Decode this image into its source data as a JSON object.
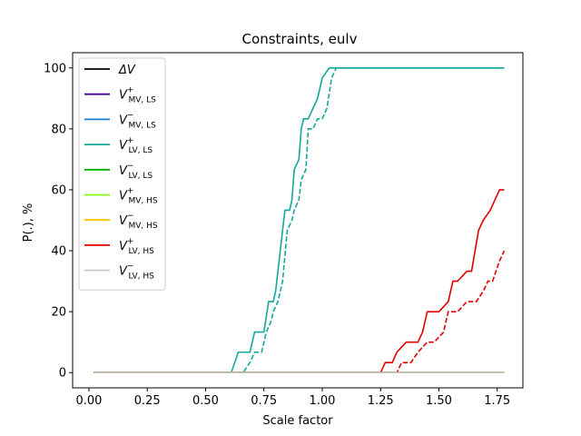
{
  "chart_data": {
    "type": "line",
    "title": "Constraints, eulv",
    "xlabel": "Scale factor",
    "ylabel": "P(.), %",
    "xlim": [
      -0.07,
      1.86
    ],
    "ylim": [
      -5,
      105
    ],
    "xticks": [
      0.0,
      0.25,
      0.5,
      0.75,
      1.0,
      1.25,
      1.5,
      1.75
    ],
    "xtick_labels": [
      "0.00",
      "0.25",
      "0.50",
      "0.75",
      "1.00",
      "1.25",
      "1.50",
      "1.75"
    ],
    "yticks": [
      0,
      20,
      40,
      60,
      80,
      100
    ],
    "ytick_labels": [
      "0",
      "20",
      "40",
      "60",
      "80",
      "100"
    ],
    "grid": false,
    "legend_position": "upper-left",
    "series": [
      {
        "name": "ΔV",
        "main": "ΔV",
        "sup": "",
        "sub": "",
        "color": "#000000",
        "style": "solid",
        "x": [
          0.02,
          1.78
        ],
        "y": [
          0,
          0
        ]
      },
      {
        "name": "V+ MV,LS",
        "main": "V",
        "sup": "+",
        "sub": "MV, LS",
        "color": "#4b0092",
        "style": "solid",
        "x": [
          0.02,
          1.78
        ],
        "y": [
          0,
          0
        ]
      },
      {
        "name": "V− MV,LS",
        "main": "V",
        "sup": "−",
        "sub": "MV, LS",
        "color": "#1a78d6",
        "style": "solid",
        "x": [
          0.02,
          1.78
        ],
        "y": [
          0,
          0
        ]
      },
      {
        "name": "V+ LV,LS",
        "main": "V",
        "sup": "+",
        "sub": "LV, LS",
        "color": "#12a89a",
        "style": "solid",
        "x": [
          0.02,
          0.61,
          0.64,
          0.67,
          0.69,
          0.71,
          0.73,
          0.75,
          0.77,
          0.79,
          0.8,
          0.81,
          0.83,
          0.84,
          0.86,
          0.87,
          0.88,
          0.9,
          0.91,
          0.92,
          0.94,
          0.96,
          0.98,
          1.0,
          1.03,
          1.78
        ],
        "y": [
          0,
          0,
          6.7,
          6.7,
          6.7,
          13.3,
          13.3,
          13.3,
          23.3,
          23.3,
          26.7,
          33.3,
          46.7,
          53.3,
          53.3,
          56.7,
          66.7,
          70,
          80,
          83.3,
          83.3,
          86.7,
          90,
          96.7,
          100,
          100
        ]
      },
      {
        "name": "V+ LV,LS (dashed)",
        "main": "",
        "sup": "",
        "sub": "",
        "color": "#12a89a",
        "style": "dashed",
        "legend": false,
        "x": [
          0.02,
          0.66,
          0.69,
          0.71,
          0.73,
          0.74,
          0.76,
          0.78,
          0.79,
          0.81,
          0.83,
          0.85,
          0.87,
          0.88,
          0.9,
          0.91,
          0.93,
          0.94,
          0.96,
          0.98,
          1.0,
          1.02,
          1.04,
          1.06,
          1.78
        ],
        "y": [
          0,
          0,
          3.3,
          6.7,
          6.7,
          6.7,
          13.3,
          16.7,
          20,
          23.3,
          30,
          46.7,
          50,
          53.3,
          56.7,
          63.3,
          66.7,
          80,
          80,
          83.3,
          83.3,
          86.7,
          96.7,
          100,
          100
        ]
      },
      {
        "name": "V− LV,LS",
        "main": "V",
        "sup": "−",
        "sub": "LV, LS",
        "color": "#00b000",
        "style": "solid",
        "x": [
          0.02,
          1.78
        ],
        "y": [
          0,
          0
        ]
      },
      {
        "name": "V+ MV,HS",
        "main": "V",
        "sup": "+",
        "sub": "MV, HS",
        "color": "#7fff00",
        "style": "solid",
        "x": [
          0.02,
          1.78
        ],
        "y": [
          0,
          0
        ]
      },
      {
        "name": "V− MV,HS",
        "main": "V",
        "sup": "−",
        "sub": "MV, HS",
        "color": "#f5c200",
        "style": "solid",
        "x": [
          0.02,
          1.78
        ],
        "y": [
          0,
          0
        ]
      },
      {
        "name": "V+ LV,HS",
        "main": "V",
        "sup": "+",
        "sub": "LV, HS",
        "color": "#e00000",
        "style": "solid",
        "x": [
          0.02,
          1.25,
          1.27,
          1.3,
          1.32,
          1.36,
          1.41,
          1.43,
          1.45,
          1.5,
          1.54,
          1.56,
          1.58,
          1.62,
          1.64,
          1.67,
          1.69,
          1.72,
          1.74,
          1.76,
          1.78
        ],
        "y": [
          0,
          0,
          3.3,
          3.3,
          6.7,
          10,
          10,
          13.3,
          20,
          20,
          23.3,
          30,
          30,
          33.3,
          33.3,
          46.7,
          50,
          53.3,
          56.7,
          60,
          60
        ]
      },
      {
        "name": "V+ LV,HS (dashed)",
        "main": "",
        "sup": "",
        "sub": "",
        "color": "#e00000",
        "style": "dashed",
        "legend": false,
        "x": [
          0.02,
          1.32,
          1.34,
          1.38,
          1.41,
          1.45,
          1.48,
          1.52,
          1.54,
          1.58,
          1.62,
          1.66,
          1.69,
          1.71,
          1.73,
          1.76,
          1.78
        ],
        "y": [
          0,
          0,
          3.3,
          3.3,
          6.7,
          10,
          10,
          13.3,
          20,
          20,
          23.3,
          23.3,
          26.7,
          30,
          30,
          36.7,
          40
        ]
      },
      {
        "name": "V− LV,HS",
        "main": "V",
        "sup": "−",
        "sub": "LV, HS",
        "color": "#c8c8c8",
        "style": "solid",
        "x": [
          0.02,
          1.78
        ],
        "y": [
          0,
          0
        ]
      }
    ]
  }
}
